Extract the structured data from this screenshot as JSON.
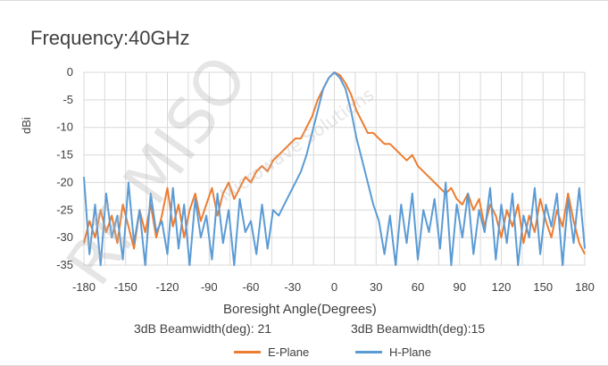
{
  "chart_data": {
    "type": "line",
    "title": "Frequency:40GHz",
    "xlabel": "Boresight Angle(Degrees)",
    "ylabel": "dBi",
    "xlim": [
      -180,
      180
    ],
    "ylim": [
      -35,
      0
    ],
    "xticks": [
      "-180",
      "-150",
      "-120",
      "-90",
      "-60",
      "-30",
      "0",
      "30",
      "60",
      "90",
      "120",
      "150",
      "180"
    ],
    "yticks": [
      "0",
      "-5",
      "-10",
      "-15",
      "-20",
      "-25",
      "-30",
      "-35"
    ],
    "grid": true,
    "legend_position": "bottom",
    "annotations": [
      "3dB Beamwidth(deg): 21",
      "3dB Beamwidth(deg):15"
    ],
    "series": [
      {
        "name": "E-Plane",
        "color": "#ED7D31",
        "points": [
          [
            -180,
            -31
          ],
          [
            -176,
            -27
          ],
          [
            -172,
            -30
          ],
          [
            -168,
            -25
          ],
          [
            -164,
            -29
          ],
          [
            -160,
            -26
          ],
          [
            -156,
            -31
          ],
          [
            -152,
            -24
          ],
          [
            -148,
            -28
          ],
          [
            -144,
            -32
          ],
          [
            -140,
            -25
          ],
          [
            -136,
            -29
          ],
          [
            -132,
            -24
          ],
          [
            -128,
            -30
          ],
          [
            -124,
            -26
          ],
          [
            -120,
            -21
          ],
          [
            -116,
            -28
          ],
          [
            -112,
            -24
          ],
          [
            -108,
            -30
          ],
          [
            -104,
            -25
          ],
          [
            -100,
            -22
          ],
          [
            -96,
            -27
          ],
          [
            -92,
            -24
          ],
          [
            -88,
            -21
          ],
          [
            -84,
            -26
          ],
          [
            -80,
            -22
          ],
          [
            -76,
            -20
          ],
          [
            -72,
            -23
          ],
          [
            -68,
            -21
          ],
          [
            -64,
            -19
          ],
          [
            -60,
            -20
          ],
          [
            -56,
            -18
          ],
          [
            -52,
            -17
          ],
          [
            -48,
            -18
          ],
          [
            -44,
            -16
          ],
          [
            -40,
            -15
          ],
          [
            -36,
            -14
          ],
          [
            -32,
            -13
          ],
          [
            -28,
            -12
          ],
          [
            -24,
            -12
          ],
          [
            -20,
            -10
          ],
          [
            -16,
            -8
          ],
          [
            -12,
            -5
          ],
          [
            -8,
            -3
          ],
          [
            -4,
            -1
          ],
          [
            0,
            0
          ],
          [
            4,
            -0.5
          ],
          [
            8,
            -2
          ],
          [
            12,
            -4
          ],
          [
            16,
            -7
          ],
          [
            20,
            -9
          ],
          [
            24,
            -11
          ],
          [
            28,
            -11
          ],
          [
            32,
            -12
          ],
          [
            36,
            -13
          ],
          [
            40,
            -13
          ],
          [
            44,
            -14
          ],
          [
            48,
            -15
          ],
          [
            52,
            -16
          ],
          [
            56,
            -15
          ],
          [
            60,
            -17
          ],
          [
            64,
            -18
          ],
          [
            68,
            -19
          ],
          [
            72,
            -20
          ],
          [
            76,
            -21
          ],
          [
            80,
            -22
          ],
          [
            84,
            -21
          ],
          [
            88,
            -23
          ],
          [
            92,
            -24
          ],
          [
            96,
            -22
          ],
          [
            100,
            -25
          ],
          [
            104,
            -23
          ],
          [
            108,
            -28
          ],
          [
            112,
            -24
          ],
          [
            116,
            -26
          ],
          [
            120,
            -30
          ],
          [
            124,
            -25
          ],
          [
            128,
            -28
          ],
          [
            132,
            -24
          ],
          [
            136,
            -31
          ],
          [
            140,
            -26
          ],
          [
            144,
            -29
          ],
          [
            148,
            -23
          ],
          [
            152,
            -27
          ],
          [
            156,
            -30
          ],
          [
            160,
            -25
          ],
          [
            164,
            -28
          ],
          [
            168,
            -22
          ],
          [
            172,
            -27
          ],
          [
            176,
            -31
          ],
          [
            180,
            -33
          ]
        ]
      },
      {
        "name": "H-Plane",
        "color": "#5B9BD5",
        "points": [
          [
            -180,
            -19
          ],
          [
            -176,
            -33
          ],
          [
            -172,
            -24
          ],
          [
            -168,
            -35
          ],
          [
            -164,
            -22
          ],
          [
            -160,
            -30
          ],
          [
            -156,
            -26
          ],
          [
            -152,
            -34
          ],
          [
            -148,
            -20
          ],
          [
            -144,
            -31
          ],
          [
            -140,
            -25
          ],
          [
            -136,
            -35
          ],
          [
            -132,
            -22
          ],
          [
            -128,
            -29
          ],
          [
            -124,
            -27
          ],
          [
            -120,
            -33
          ],
          [
            -116,
            -21
          ],
          [
            -112,
            -32
          ],
          [
            -108,
            -24
          ],
          [
            -104,
            -35
          ],
          [
            -100,
            -23
          ],
          [
            -96,
            -30
          ],
          [
            -92,
            -26
          ],
          [
            -88,
            -34
          ],
          [
            -84,
            -22
          ],
          [
            -80,
            -31
          ],
          [
            -76,
            -25
          ],
          [
            -72,
            -35
          ],
          [
            -68,
            -23
          ],
          [
            -64,
            -29
          ],
          [
            -60,
            -27
          ],
          [
            -56,
            -33
          ],
          [
            -52,
            -24
          ],
          [
            -48,
            -32
          ],
          [
            -44,
            -25
          ],
          [
            -40,
            -26
          ],
          [
            -36,
            -24
          ],
          [
            -32,
            -22
          ],
          [
            -28,
            -20
          ],
          [
            -24,
            -18
          ],
          [
            -20,
            -15
          ],
          [
            -16,
            -11
          ],
          [
            -12,
            -7
          ],
          [
            -8,
            -3
          ],
          [
            -4,
            -1
          ],
          [
            0,
            0
          ],
          [
            4,
            -1
          ],
          [
            8,
            -3
          ],
          [
            12,
            -7
          ],
          [
            16,
            -12
          ],
          [
            20,
            -16
          ],
          [
            24,
            -20
          ],
          [
            28,
            -24
          ],
          [
            32,
            -27
          ],
          [
            36,
            -33
          ],
          [
            40,
            -26
          ],
          [
            44,
            -35
          ],
          [
            48,
            -24
          ],
          [
            52,
            -31
          ],
          [
            56,
            -22
          ],
          [
            60,
            -34
          ],
          [
            64,
            -25
          ],
          [
            68,
            -29
          ],
          [
            72,
            -23
          ],
          [
            76,
            -32
          ],
          [
            80,
            -20
          ],
          [
            84,
            -35
          ],
          [
            88,
            -24
          ],
          [
            92,
            -30
          ],
          [
            96,
            -22
          ],
          [
            100,
            -33
          ],
          [
            104,
            -25
          ],
          [
            108,
            -29
          ],
          [
            112,
            -21
          ],
          [
            116,
            -34
          ],
          [
            120,
            -24
          ],
          [
            124,
            -31
          ],
          [
            128,
            -22
          ],
          [
            132,
            -35
          ],
          [
            136,
            -26
          ],
          [
            140,
            -30
          ],
          [
            144,
            -21
          ],
          [
            148,
            -33
          ],
          [
            152,
            -24
          ],
          [
            156,
            -28
          ],
          [
            160,
            -22
          ],
          [
            164,
            -35
          ],
          [
            168,
            -23
          ],
          [
            172,
            -31
          ],
          [
            176,
            -21
          ],
          [
            180,
            -32
          ]
        ]
      }
    ]
  }
}
